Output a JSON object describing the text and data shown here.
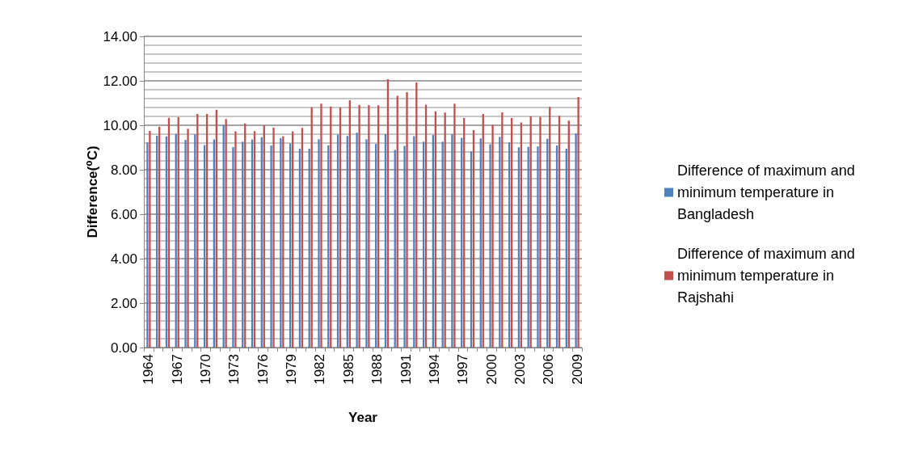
{
  "chart_data": {
    "type": "bar",
    "xlabel": "Year",
    "ylabel": "Difference(⁰C)",
    "categories": [
      "1964",
      null,
      null,
      "1967",
      null,
      null,
      "1970",
      null,
      null,
      "1973",
      null,
      null,
      "1976",
      null,
      null,
      "1979",
      null,
      null,
      "1982",
      null,
      null,
      "1985",
      null,
      null,
      "1988",
      null,
      null,
      "1991",
      null,
      null,
      "1994",
      null,
      null,
      "1997",
      null,
      null,
      "2000",
      null,
      null,
      "2003",
      null,
      null,
      "2006",
      null,
      null,
      "2009"
    ],
    "series": [
      {
        "name": "Difference of maximum and minimum temperature in Bangladesh",
        "color": "#4f81bd",
        "values": [
          9.23,
          9.53,
          9.5,
          9.61,
          9.35,
          9.59,
          9.11,
          9.36,
          10.01,
          9.02,
          9.26,
          9.36,
          9.46,
          9.09,
          9.43,
          9.18,
          8.95,
          8.95,
          9.37,
          9.1,
          9.58,
          9.52,
          9.66,
          9.37,
          9.16,
          9.6,
          8.89,
          9.07,
          9.51,
          9.26,
          9.56,
          9.26,
          9.6,
          9.44,
          8.83,
          9.41,
          9.15,
          9.48,
          9.23,
          9.01,
          9.03,
          9.05,
          9.39,
          9.09,
          8.95,
          9.64
        ]
      },
      {
        "name": "Difference of maximum and minimum temperature in Rajshahi",
        "color": "#c0504d",
        "values": [
          9.75,
          9.94,
          10.34,
          10.36,
          9.85,
          10.51,
          10.51,
          10.7,
          10.28,
          9.73,
          10.08,
          9.74,
          10.0,
          9.89,
          9.51,
          9.73,
          9.88,
          10.81,
          10.97,
          10.85,
          10.8,
          11.13,
          10.92,
          10.91,
          10.9,
          12.07,
          11.33,
          11.49,
          11.93,
          10.93,
          10.63,
          10.57,
          10.97,
          10.33,
          9.78,
          10.51,
          10.02,
          10.58,
          10.33,
          10.13,
          10.4,
          10.38,
          10.83,
          10.43,
          10.21,
          11.27
        ]
      }
    ],
    "ylim": [
      0,
      14
    ],
    "yticks": [
      {
        "value": 0,
        "label": "0.00"
      },
      {
        "value": 2,
        "label": "2.00"
      },
      {
        "value": 4,
        "label": "4.00"
      },
      {
        "value": 6,
        "label": "6.00"
      },
      {
        "value": 8,
        "label": "8.00"
      },
      {
        "value": 10,
        "label": "10.00"
      },
      {
        "value": 12,
        "label": "12.00"
      },
      {
        "value": 14,
        "label": "14.00"
      }
    ],
    "grid": true,
    "legend": "right"
  }
}
